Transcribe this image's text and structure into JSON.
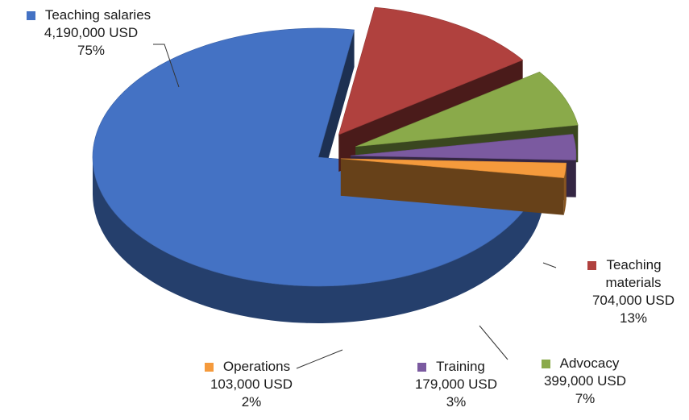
{
  "chart_data": {
    "type": "pie",
    "style": "3d-exploded",
    "title": "",
    "unit": "USD",
    "slices": [
      {
        "name": "Teaching salaries",
        "value": 4190000,
        "value_label": "4,190,000 USD",
        "percent": 75,
        "percent_label": "75%",
        "color": "#4472C4"
      },
      {
        "name": "Teaching materials",
        "value": 704000,
        "value_label": "704,000 USD",
        "percent": 13,
        "percent_label": "13%",
        "color": "#B0413E"
      },
      {
        "name": "Advocacy",
        "value": 399000,
        "value_label": "399,000 USD",
        "percent": 7,
        "percent_label": "7%",
        "color": "#8AAA4A"
      },
      {
        "name": "Training",
        "value": 179000,
        "value_label": "179,000 USD",
        "percent": 3,
        "percent_label": "3%",
        "color": "#7B5AA0"
      },
      {
        "name": "Operations",
        "value": 103000,
        "value_label": "103,000 USD",
        "percent": 2,
        "percent_label": "2%",
        "color": "#F59A3C"
      }
    ]
  }
}
